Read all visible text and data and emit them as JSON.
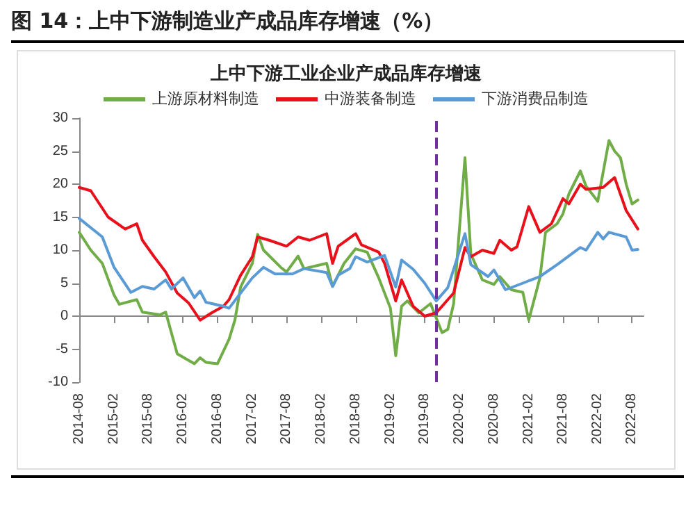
{
  "chart_data": {
    "type": "line",
    "title": "图 14：上中下游制造业产成品库存增速（%）",
    "subtitle": "上中下游工业企业产成品库存增速",
    "xlim": [
      "2014-08",
      "2022-10"
    ],
    "xticks": [
      "2014-08",
      "2015-02",
      "2015-08",
      "2016-02",
      "2016-08",
      "2017-02",
      "2017-08",
      "2018-02",
      "2018-08",
      "2019-02",
      "2019-08",
      "2020-02",
      "2020-08",
      "2021-02",
      "2021-08",
      "2022-02",
      "2022-08"
    ],
    "ylim": [
      -10,
      30
    ],
    "yticks": [
      -10,
      -5,
      0,
      5,
      10,
      15,
      20,
      25,
      30
    ],
    "legend": "top",
    "marker": "none",
    "line_style": "solid",
    "ref_lines": [
      {
        "axis": "x",
        "value": "2019-10",
        "color": "#7030a0",
        "line_style": "dashed"
      }
    ],
    "series": [
      {
        "name": "上游原材料制造",
        "color": "#70ad47",
        "x": [
          "2014-08",
          "2014-10",
          "2014-12",
          "2015-02",
          "2015-03",
          "2015-06",
          "2015-07",
          "2015-10",
          "2015-11",
          "2016-01",
          "2016-04",
          "2016-05",
          "2016-06",
          "2016-08",
          "2016-10",
          "2016-11",
          "2016-12",
          "2017-02",
          "2017-03",
          "2017-04",
          "2017-07",
          "2017-08",
          "2017-10",
          "2017-11",
          "2018-03",
          "2018-04",
          "2018-06",
          "2018-08",
          "2018-10",
          "2018-12",
          "2019-02",
          "2019-03",
          "2019-04",
          "2019-05",
          "2019-07",
          "2019-09",
          "2019-11",
          "2019-12",
          "2020-01",
          "2020-03",
          "2020-04",
          "2020-06",
          "2020-08",
          "2020-09",
          "2020-11",
          "2021-01",
          "2021-02",
          "2021-04",
          "2021-05",
          "2021-07",
          "2021-08",
          "2021-09",
          "2021-11",
          "2021-12",
          "2022-02",
          "2022-04",
          "2022-05",
          "2022-06",
          "2022-07",
          "2022-08",
          "2022-09"
        ],
        "values": [
          12.7,
          10,
          8,
          3.2,
          1.8,
          2.5,
          0.6,
          0.2,
          0.6,
          -5.7,
          -7.2,
          -6.3,
          -7,
          -7.2,
          -3.5,
          -0.6,
          4.4,
          8,
          12.4,
          10,
          7.4,
          6.7,
          9.1,
          7.2,
          8,
          4.5,
          8,
          10.2,
          9.7,
          5.8,
          1.2,
          -6,
          1.5,
          2.3,
          0.5,
          1.9,
          -2.5,
          -2,
          1.9,
          24,
          9.4,
          5.5,
          4.8,
          6,
          4,
          3.6,
          -0.6,
          5.8,
          12.7,
          14,
          15.5,
          18.5,
          22,
          19.7,
          17.4,
          26.6,
          25,
          24,
          20,
          17,
          17.6
        ]
      },
      {
        "name": "中游装备制造",
        "color": "#e8101a",
        "x": [
          "2014-08",
          "2014-10",
          "2015-01",
          "2015-04",
          "2015-06",
          "2015-07",
          "2015-09",
          "2015-11",
          "2016-01",
          "2016-03",
          "2016-05",
          "2016-07",
          "2016-09",
          "2016-10",
          "2016-12",
          "2017-02",
          "2017-03",
          "2017-05",
          "2017-08",
          "2017-10",
          "2017-12",
          "2018-03",
          "2018-04",
          "2018-05",
          "2018-08",
          "2018-09",
          "2018-12",
          "2019-01",
          "2019-03",
          "2019-04",
          "2019-06",
          "2019-08",
          "2019-10",
          "2020-01",
          "2020-03",
          "2020-04",
          "2020-06",
          "2020-08",
          "2020-09",
          "2020-11",
          "2020-12",
          "2021-02",
          "2021-04",
          "2021-06",
          "2021-08",
          "2021-09",
          "2021-11",
          "2021-12",
          "2022-03",
          "2022-05",
          "2022-07",
          "2022-09"
        ],
        "values": [
          19.5,
          19,
          15,
          13.2,
          14,
          11.5,
          9,
          6.7,
          3.5,
          2,
          -0.6,
          0.5,
          1.5,
          2.5,
          6.2,
          9,
          12,
          11.5,
          10.6,
          12,
          11.5,
          12.5,
          8,
          10.6,
          12.5,
          10.8,
          9.7,
          8,
          2.3,
          5.5,
          1.5,
          0,
          0.5,
          3.5,
          10.4,
          9,
          10,
          9.5,
          11.5,
          10,
          10.5,
          16.6,
          12.7,
          14,
          17.8,
          17,
          20,
          19.2,
          19.5,
          21,
          16,
          13.2
        ]
      },
      {
        "name": "下游消费品制造",
        "color": "#5b9bd5",
        "x": [
          "2014-08",
          "2014-12",
          "2015-02",
          "2015-05",
          "2015-07",
          "2015-09",
          "2015-11",
          "2015-12",
          "2016-02",
          "2016-04",
          "2016-05",
          "2016-06",
          "2016-09",
          "2016-10",
          "2016-12",
          "2017-02",
          "2017-04",
          "2017-06",
          "2017-09",
          "2017-11",
          "2018-03",
          "2018-04",
          "2018-05",
          "2018-07",
          "2018-08",
          "2018-10",
          "2019-01",
          "2019-03",
          "2019-04",
          "2019-06",
          "2019-08",
          "2019-10",
          "2019-12",
          "2020-03",
          "2020-04",
          "2020-07",
          "2020-08",
          "2020-10",
          "2021-01",
          "2021-04",
          "2021-07",
          "2021-11",
          "2021-12",
          "2022-02",
          "2022-03",
          "2022-04",
          "2022-07",
          "2022-08",
          "2022-09"
        ],
        "values": [
          14.8,
          12,
          7.4,
          3.6,
          4.5,
          4.1,
          5.5,
          4.1,
          5.8,
          2.8,
          3.8,
          2.1,
          1.5,
          1.2,
          3.5,
          5.8,
          7.4,
          6.4,
          6.4,
          7.2,
          6.6,
          4.5,
          6.2,
          7.2,
          9,
          8.2,
          9.2,
          4.4,
          8.5,
          7.1,
          5,
          2.3,
          4.3,
          12.5,
          7.8,
          6,
          7,
          4,
          5,
          6,
          7.8,
          10.4,
          10,
          12.7,
          11.7,
          12.7,
          12,
          10,
          10.1
        ]
      }
    ]
  }
}
